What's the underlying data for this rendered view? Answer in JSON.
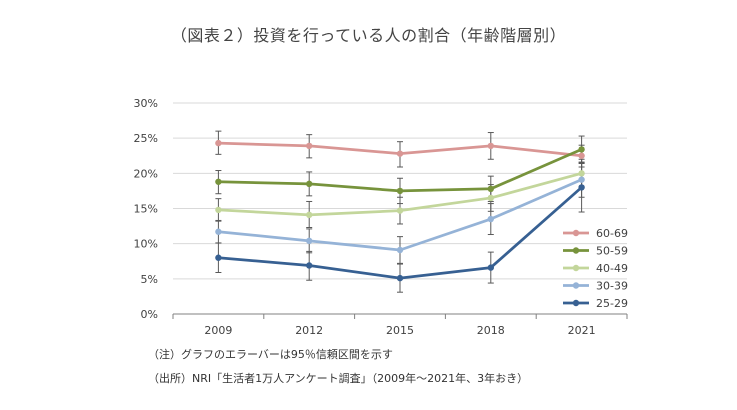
{
  "chart_data": {
    "type": "line",
    "title": "（図表２）投資を行っている人の割合（年齢階層別）",
    "xlabel": "",
    "ylabel": "",
    "categories": [
      "2009",
      "2012",
      "2015",
      "2018",
      "2021"
    ],
    "ylim": [
      0,
      30
    ],
    "yticks": [
      "0%",
      "5%",
      "10%",
      "15%",
      "20%",
      "25%",
      "30%"
    ],
    "grid": true,
    "legend_position": "right",
    "series": [
      {
        "name": "60-69",
        "color": "#d99694",
        "values": [
          24.3,
          23.9,
          22.8,
          23.9,
          22.5
        ],
        "err_low": [
          22.7,
          22.2,
          20.9,
          22.0,
          20.9
        ],
        "err_high": [
          26.0,
          25.5,
          24.5,
          25.8,
          24.0
        ]
      },
      {
        "name": "50-59",
        "color": "#77933c",
        "values": [
          18.8,
          18.5,
          17.5,
          17.8,
          23.4
        ],
        "err_low": [
          17.1,
          16.8,
          15.7,
          16.0,
          21.5
        ],
        "err_high": [
          20.4,
          20.2,
          19.3,
          19.6,
          25.3
        ]
      },
      {
        "name": "40-49",
        "color": "#c3d69b",
        "values": [
          14.8,
          14.1,
          14.7,
          16.5,
          20.0
        ],
        "err_low": [
          13.2,
          12.3,
          12.8,
          14.6,
          18.1
        ],
        "err_high": [
          16.4,
          16.0,
          16.6,
          18.4,
          22.0
        ]
      },
      {
        "name": "30-39",
        "color": "#95b3d7",
        "values": [
          11.7,
          10.4,
          9.1,
          13.5,
          19.1
        ],
        "err_low": [
          10.1,
          8.7,
          7.2,
          11.3,
          16.6
        ],
        "err_high": [
          13.3,
          12.1,
          11.0,
          15.7,
          21.6
        ]
      },
      {
        "name": "25-29",
        "color": "#376092",
        "values": [
          8.0,
          6.9,
          5.1,
          6.6,
          18.0
        ],
        "err_low": [
          5.9,
          4.8,
          3.1,
          4.4,
          14.5
        ],
        "err_high": [
          10.1,
          8.9,
          7.1,
          8.8,
          21.4
        ]
      }
    ]
  },
  "notes": [
    "（注）グラフのエラーバーは95％信頼区間を示す",
    "（出所）NRI「生活者1万人アンケート調査」（2009年～2021年、3年おき）"
  ]
}
